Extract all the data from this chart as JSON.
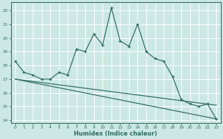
{
  "xlabel": "Humidex (Indice chaleur)",
  "bg_color": "#cce8e4",
  "line_color": "#2d6b5e",
  "grid_color": "#ffffff",
  "xlim": [
    -0.5,
    23.5
  ],
  "ylim": [
    13.8,
    22.6
  ],
  "yticks": [
    14,
    15,
    16,
    17,
    18,
    19,
    20,
    21,
    22
  ],
  "xticks": [
    0,
    1,
    2,
    3,
    4,
    5,
    6,
    7,
    8,
    9,
    10,
    11,
    12,
    13,
    14,
    15,
    16,
    17,
    18,
    19,
    20,
    21,
    22,
    23
  ],
  "curve1_x": [
    0,
    1,
    2,
    3,
    4,
    5,
    6,
    7,
    8,
    9,
    10,
    11,
    12,
    13,
    14,
    15,
    16,
    17,
    18,
    19,
    20,
    21,
    22,
    23
  ],
  "curve1_y": [
    18.3,
    17.5,
    17.3,
    17.0,
    17.0,
    17.5,
    17.3,
    19.2,
    19.0,
    20.3,
    19.5,
    22.2,
    19.8,
    19.4,
    21.0,
    19.0,
    18.5,
    18.3,
    17.2,
    15.5,
    15.2,
    15.0,
    15.2,
    14.1
  ],
  "curve2_x": [
    0,
    23
  ],
  "curve2_y": [
    17.0,
    14.1
  ],
  "curve3_x": [
    0,
    23
  ],
  "curve3_y": [
    17.0,
    15.1
  ]
}
